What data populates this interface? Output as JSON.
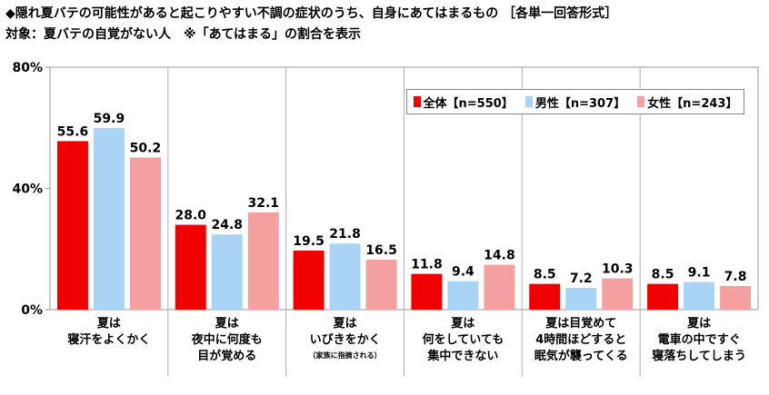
{
  "title_line1": "◆隠れ夏バテの可能性があると起こりやすい不調の症状のうち、自身にあてはまるもの ［各単一回答形式］",
  "title_line2": "対象：夏バテの自覚がない人　※「あてはまる」の割合を表示",
  "colors": {
    "all": "#f00000",
    "male": "#a9d4f5",
    "female": "#f4a0a0"
  },
  "chart_data": {
    "type": "bar",
    "ylim": [
      0,
      80
    ],
    "yticks": [
      "0%",
      "40%",
      "80%"
    ],
    "ytick_values": [
      0,
      40,
      80
    ],
    "grid": false,
    "legend_position": "top-right",
    "categories": [
      {
        "lines": [
          "夏は",
          "寝汗をよくかく"
        ],
        "note": ""
      },
      {
        "lines": [
          "夏は",
          "夜中に何度も",
          "目が覚める"
        ],
        "note": ""
      },
      {
        "lines": [
          "夏は",
          "いびきをかく"
        ],
        "note": "（家族に指摘される）"
      },
      {
        "lines": [
          "夏は",
          "何をしていても",
          "集中できない"
        ],
        "note": ""
      },
      {
        "lines": [
          "夏は目覚めて",
          "4時間ほどすると",
          "眠気が襲ってくる"
        ],
        "note": ""
      },
      {
        "lines": [
          "夏は",
          "電車の中ですぐ",
          "寝落ちしてしまう"
        ],
        "note": ""
      }
    ],
    "series": [
      {
        "name": "全体【n=550】",
        "color_key": "all",
        "values": [
          55.6,
          28.0,
          19.5,
          11.8,
          8.5,
          8.5
        ]
      },
      {
        "name": "男性【n=307】",
        "color_key": "male",
        "values": [
          59.9,
          24.8,
          21.8,
          9.4,
          7.2,
          9.1
        ]
      },
      {
        "name": "女性【n=243】",
        "color_key": "female",
        "values": [
          50.2,
          32.1,
          16.5,
          14.8,
          10.3,
          7.8
        ]
      }
    ]
  }
}
